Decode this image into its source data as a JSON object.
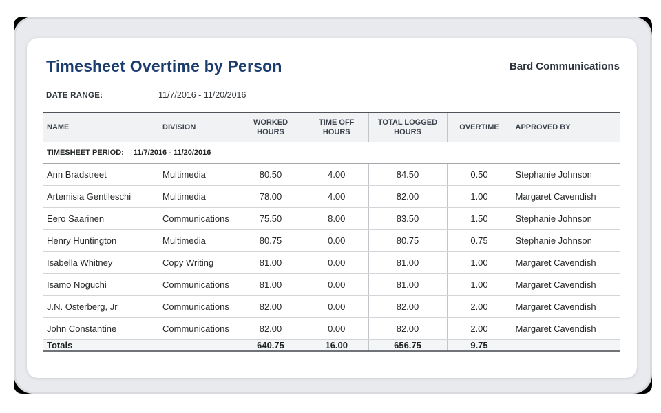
{
  "report": {
    "title": "Timesheet Overtime by Person",
    "company": "Bard Communications",
    "date_range_label": "DATE RANGE:",
    "date_range_value": "11/7/2016 - 11/20/2016"
  },
  "table": {
    "columns": [
      {
        "label": "NAME",
        "align": "left"
      },
      {
        "label": "DIVISION",
        "align": "left"
      },
      {
        "label": "WORKED HOURS",
        "align": "center"
      },
      {
        "label": "TIME OFF HOURS",
        "align": "center"
      },
      {
        "label": "TOTAL LOGGED HOURS",
        "align": "center"
      },
      {
        "label": "OVERTIME",
        "align": "center"
      },
      {
        "label": "APPROVED BY",
        "align": "left"
      }
    ],
    "period_label": "TIMESHEET PERIOD:",
    "period_value": "11/7/2016 - 11/20/2016",
    "rows": [
      {
        "name": "Ann Bradstreet",
        "division": "Multimedia",
        "worked": "80.50",
        "time_off": "4.00",
        "total": "84.50",
        "overtime": "0.50",
        "approved_by": "Stephanie Johnson"
      },
      {
        "name": "Artemisia Gentileschi",
        "division": "Multimedia",
        "worked": "78.00",
        "time_off": "4.00",
        "total": "82.00",
        "overtime": "1.00",
        "approved_by": "Margaret Cavendish"
      },
      {
        "name": "Eero Saarinen",
        "division": "Communications",
        "worked": "75.50",
        "time_off": "8.00",
        "total": "83.50",
        "overtime": "1.50",
        "approved_by": "Stephanie Johnson"
      },
      {
        "name": "Henry Huntington",
        "division": "Multimedia",
        "worked": "80.75",
        "time_off": "0.00",
        "total": "80.75",
        "overtime": "0.75",
        "approved_by": "Stephanie Johnson"
      },
      {
        "name": "Isabella Whitney",
        "division": "Copy Writing",
        "worked": "81.00",
        "time_off": "0.00",
        "total": "81.00",
        "overtime": "1.00",
        "approved_by": "Margaret Cavendish"
      },
      {
        "name": "Isamo Noguchi",
        "division": "Communications",
        "worked": "81.00",
        "time_off": "0.00",
        "total": "81.00",
        "overtime": "1.00",
        "approved_by": "Margaret Cavendish"
      },
      {
        "name": "J.N. Osterberg, Jr",
        "division": "Communications",
        "worked": "82.00",
        "time_off": "0.00",
        "total": "82.00",
        "overtime": "2.00",
        "approved_by": "Margaret Cavendish"
      },
      {
        "name": "John Constantine",
        "division": "Communications",
        "worked": "82.00",
        "time_off": "0.00",
        "total": "82.00",
        "overtime": "2.00",
        "approved_by": "Margaret Cavendish"
      }
    ],
    "totals": {
      "label": "Totals",
      "worked": "640.75",
      "time_off": "16.00",
      "total": "656.75",
      "overtime": "9.75"
    }
  },
  "colors": {
    "title": "#1a3c6e",
    "header_background": "#f1f2f4",
    "totals_background": "#f4f5f6",
    "window_background": "#e9eaee",
    "row_border": "#d2d4d8"
  }
}
